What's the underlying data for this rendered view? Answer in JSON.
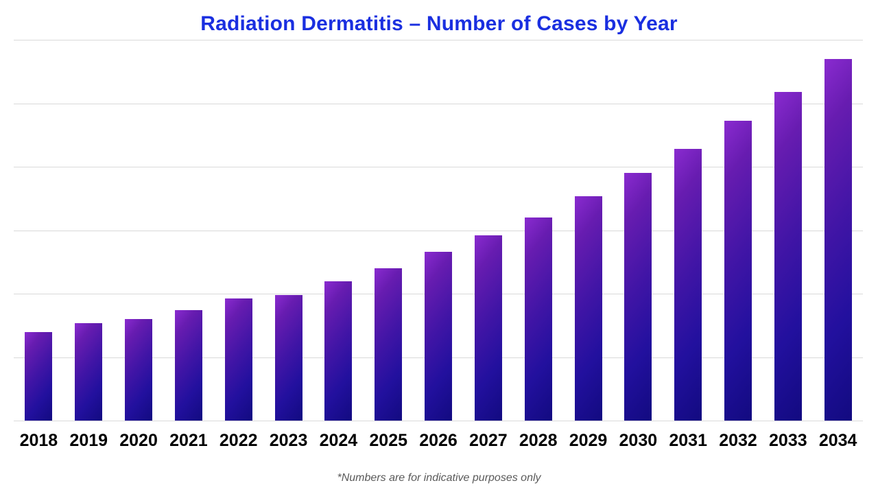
{
  "title": "Radiation Dermatitis – Number of Cases by Year",
  "footnote": "*Numbers are for indicative purposes only",
  "colors": {
    "title": "#1A2FE0",
    "gridline": "#D9D9D9",
    "x_axis_label": "#000000",
    "footnote": "#595959",
    "bar_gradient_top_left": "#8A2BD0",
    "bar_gradient_upper_mid": "#671CB0",
    "bar_gradient_mid": "#4215A6",
    "bar_gradient_lower": "#22109E",
    "bar_gradient_bottom_right": "#120A80"
  },
  "chart_data": {
    "type": "bar",
    "title": "Radiation Dermatitis – Number of Cases by Year",
    "categories": [
      "2018",
      "2019",
      "2020",
      "2021",
      "2022",
      "2023",
      "2024",
      "2025",
      "2026",
      "2027",
      "2028",
      "2029",
      "2030",
      "2031",
      "2032",
      "2033",
      "2034"
    ],
    "values": [
      70,
      77,
      80,
      87,
      96,
      99,
      110,
      120,
      133,
      146,
      160,
      177,
      195,
      214,
      236,
      259,
      285
    ],
    "xlabel": "",
    "ylabel": "",
    "ylim": [
      0,
      300
    ],
    "gridline_step": 50,
    "grid": true,
    "y_axis_tick_labels_visible": false,
    "legend": false,
    "annotation": "*Numbers are for indicative purposes only"
  }
}
